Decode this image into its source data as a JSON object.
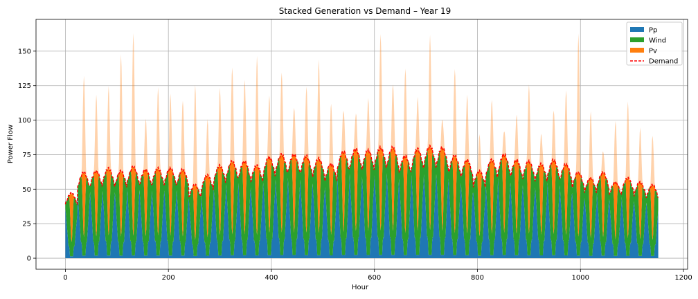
{
  "chart_data": {
    "type": "area",
    "title": "Stacked Generation vs Demand – Year 19",
    "xlabel": "Hour",
    "ylabel": "Power Flow",
    "xlim": [
      -57,
      1208
    ],
    "ylim": [
      -8,
      173
    ],
    "xticks": [
      0,
      200,
      400,
      600,
      800,
      1000,
      1200
    ],
    "yticks": [
      0,
      25,
      50,
      75,
      100,
      125,
      150
    ],
    "grid": true,
    "legend_position": "upper right",
    "colors": {
      "pp": "#1f77b4",
      "wind": "#2ca02c",
      "pv": "#ff7f0e",
      "demand": "#ff0000"
    },
    "day_hours": [
      0,
      24,
      48,
      72,
      96,
      120,
      144,
      168,
      192,
      216,
      240,
      264,
      288,
      312,
      336,
      360,
      384,
      408,
      432,
      456,
      480,
      504,
      528,
      552,
      576,
      600,
      624,
      648,
      672,
      696,
      720,
      744,
      768,
      792,
      816,
      840,
      864,
      888,
      912,
      936,
      960,
      984,
      1008,
      1032,
      1056,
      1080,
      1104,
      1128
    ],
    "demand_daily_peak": [
      47,
      62,
      63,
      65,
      63,
      66,
      64,
      65,
      65,
      64,
      53,
      60,
      67,
      70,
      70,
      67,
      73,
      75,
      75,
      74,
      72,
      68,
      77,
      79,
      78,
      80,
      80,
      74,
      79,
      81,
      80,
      74,
      71,
      63,
      71,
      75,
      71,
      70,
      68,
      71,
      68,
      62,
      58,
      62,
      55,
      58,
      55,
      53
    ],
    "pv_daily_peak": [
      45,
      133,
      118,
      124,
      148,
      164,
      101,
      123,
      119,
      115,
      126,
      100,
      123,
      139,
      130,
      146,
      117,
      135,
      110,
      124,
      143,
      112,
      108,
      105,
      115,
      162,
      127,
      138,
      116,
      161,
      101,
      138,
      118,
      89,
      115,
      93,
      104,
      125,
      90,
      108,
      122,
      162,
      106,
      78,
      100,
      113,
      94,
      89
    ],
    "series": [
      {
        "name": "Pp",
        "kind": "stacked-area"
      },
      {
        "name": "Wind",
        "kind": "stacked-area"
      },
      {
        "name": "Pv",
        "kind": "stacked-area"
      },
      {
        "name": "Demand",
        "kind": "dashed-line"
      }
    ]
  }
}
